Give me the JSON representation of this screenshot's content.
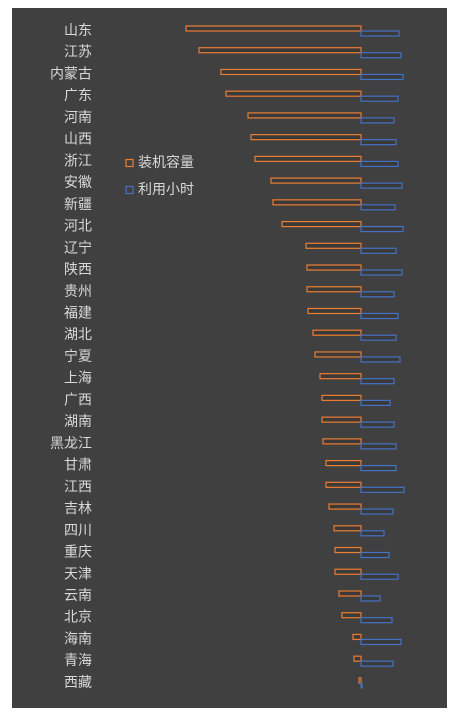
{
  "chart_data": {
    "type": "butterfly",
    "categories": [
      "山东",
      "江苏",
      "内蒙古",
      "广东",
      "河南",
      "山西",
      "浙江",
      "安徽",
      "新疆",
      "河北",
      "辽宁",
      "陕西",
      "贵州",
      "福建",
      "湖北",
      "宁夏",
      "上海",
      "广西",
      "湖南",
      "黑龙江",
      "甘肃",
      "江西",
      "吉林",
      "四川",
      "重庆",
      "天津",
      "云南",
      "北京",
      "海南",
      "青海",
      "西藏"
    ],
    "series": [
      {
        "name": "装机容量",
        "color": "#ed7d31",
        "values": [
          175,
          162,
          140,
          135,
          113,
          110,
          106,
          90,
          88,
          79,
          55,
          54,
          54,
          53,
          48,
          46,
          41,
          39,
          39,
          38,
          35,
          35,
          32,
          27,
          26,
          26,
          22,
          19,
          8,
          7,
          2
        ]
      },
      {
        "name": "利用小时",
        "color": "#4472c4",
        "values": [
          38,
          40,
          42,
          37,
          33,
          35,
          37,
          41,
          34,
          42,
          35,
          41,
          33,
          37,
          35,
          39,
          33,
          29,
          33,
          35,
          35,
          43,
          32,
          23,
          28,
          37,
          19,
          31,
          40,
          32,
          1
        ]
      }
    ],
    "xlim": [
      0,
      200
    ]
  }
}
